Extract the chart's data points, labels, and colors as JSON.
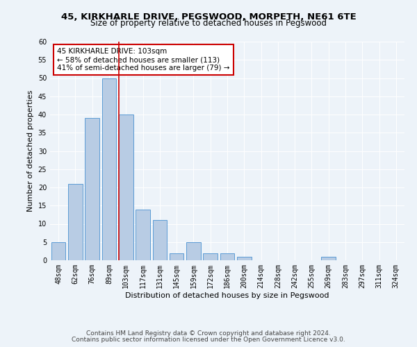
{
  "title": "45, KIRKHARLE DRIVE, PEGSWOOD, MORPETH, NE61 6TE",
  "subtitle": "Size of property relative to detached houses in Pegswood",
  "xlabel": "Distribution of detached houses by size in Pegswood",
  "ylabel": "Number of detached properties",
  "bar_labels": [
    "48sqm",
    "62sqm",
    "76sqm",
    "89sqm",
    "103sqm",
    "117sqm",
    "131sqm",
    "145sqm",
    "159sqm",
    "172sqm",
    "186sqm",
    "200sqm",
    "214sqm",
    "228sqm",
    "242sqm",
    "255sqm",
    "269sqm",
    "283sqm",
    "297sqm",
    "311sqm",
    "324sqm"
  ],
  "bar_values": [
    5,
    21,
    39,
    50,
    40,
    14,
    11,
    2,
    5,
    2,
    2,
    1,
    0,
    0,
    0,
    0,
    1,
    0,
    0,
    0,
    0
  ],
  "bar_color": "#b8cce4",
  "bar_edge_color": "#5b9bd5",
  "highlight_index": 4,
  "highlight_line_color": "#cc0000",
  "ylim": [
    0,
    60
  ],
  "yticks": [
    0,
    5,
    10,
    15,
    20,
    25,
    30,
    35,
    40,
    45,
    50,
    55,
    60
  ],
  "annotation_line1": "45 KIRKHARLE DRIVE: 103sqm",
  "annotation_line2": "← 58% of detached houses are smaller (113)",
  "annotation_line3": "41% of semi-detached houses are larger (79) →",
  "annotation_box_color": "#ffffff",
  "annotation_box_edge_color": "#cc0000",
  "footer_line1": "Contains HM Land Registry data © Crown copyright and database right 2024.",
  "footer_line2": "Contains public sector information licensed under the Open Government Licence v3.0.",
  "bg_color": "#edf3f9",
  "plot_bg_color": "#edf3f9",
  "title_fontsize": 9.5,
  "subtitle_fontsize": 8.5,
  "axis_label_fontsize": 8,
  "tick_fontsize": 7,
  "annotation_fontsize": 7.5,
  "footer_fontsize": 6.5
}
